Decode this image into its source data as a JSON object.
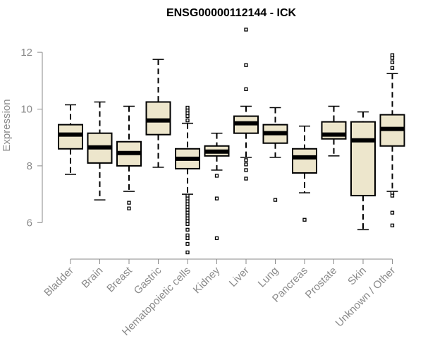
{
  "chart_data": {
    "type": "boxplot",
    "title": "ENSG00000112144 - ICK",
    "ylabel": "Expression",
    "xlabel": "",
    "ylim": [
      4.8,
      12.9
    ],
    "yticks": [
      6,
      8,
      10,
      12
    ],
    "colors": {
      "box_fill": "#ede6cc",
      "stroke": "#000000",
      "axis": "#8a8a8a"
    },
    "categories": [
      "Bladder",
      "Brain",
      "Breast",
      "Gastric",
      "Hematopoietic cells",
      "Kidney",
      "Liver",
      "Lung",
      "Pancreas",
      "Prostate",
      "Skin",
      "Unknown / Other"
    ],
    "boxes": [
      {
        "category": "Bladder",
        "whisker_low": 7.7,
        "q1": 8.6,
        "median": 9.1,
        "q3": 9.45,
        "whisker_high": 10.15,
        "outliers": []
      },
      {
        "category": "Brain",
        "whisker_low": 6.8,
        "q1": 8.1,
        "median": 8.65,
        "q3": 9.15,
        "whisker_high": 10.25,
        "outliers": []
      },
      {
        "category": "Breast",
        "whisker_low": 7.1,
        "q1": 8.0,
        "median": 8.45,
        "q3": 8.85,
        "whisker_high": 10.1,
        "outliers": [
          6.7,
          6.5
        ]
      },
      {
        "category": "Gastric",
        "whisker_low": 7.95,
        "q1": 9.1,
        "median": 9.6,
        "q3": 10.25,
        "whisker_high": 11.75,
        "outliers": []
      },
      {
        "category": "Hematopoietic cells",
        "whisker_low": 7.0,
        "q1": 7.9,
        "median": 8.25,
        "q3": 8.6,
        "whisker_high": 9.5,
        "outliers": [
          10.05,
          9.95,
          9.85,
          9.75,
          9.6,
          6.95,
          6.85,
          6.75,
          6.65,
          6.55,
          6.45,
          6.35,
          6.25,
          6.15,
          6.05,
          5.95,
          5.75,
          5.55,
          5.45,
          5.25,
          4.95
        ]
      },
      {
        "category": "Kidney",
        "whisker_low": 7.85,
        "q1": 8.35,
        "median": 8.5,
        "q3": 8.7,
        "whisker_high": 9.15,
        "outliers": [
          7.65,
          6.85,
          5.45
        ]
      },
      {
        "category": "Liver",
        "whisker_low": 8.3,
        "q1": 9.15,
        "median": 9.5,
        "q3": 9.75,
        "whisker_high": 10.1,
        "outliers": [
          12.8,
          11.55,
          10.7,
          8.2,
          8.05,
          7.85,
          7.55
        ]
      },
      {
        "category": "Lung",
        "whisker_low": 8.3,
        "q1": 8.8,
        "median": 9.15,
        "q3": 9.45,
        "whisker_high": 10.05,
        "outliers": [
          6.8
        ]
      },
      {
        "category": "Pancreas",
        "whisker_low": 7.05,
        "q1": 7.75,
        "median": 8.3,
        "q3": 8.6,
        "whisker_high": 9.4,
        "outliers": [
          6.1
        ]
      },
      {
        "category": "Prostate",
        "whisker_low": 8.35,
        "q1": 8.95,
        "median": 9.1,
        "q3": 9.55,
        "whisker_high": 10.1,
        "outliers": []
      },
      {
        "category": "Skin",
        "whisker_low": 5.75,
        "q1": 6.95,
        "median": 8.9,
        "q3": 9.55,
        "whisker_high": 9.9,
        "outliers": []
      },
      {
        "category": "Unknown / Other",
        "whisker_low": 7.1,
        "q1": 8.7,
        "median": 9.3,
        "q3": 9.8,
        "whisker_high": 11.25,
        "outliers": [
          11.9,
          11.8,
          11.65,
          11.45,
          7.05,
          6.95,
          6.35,
          5.9
        ]
      }
    ]
  }
}
